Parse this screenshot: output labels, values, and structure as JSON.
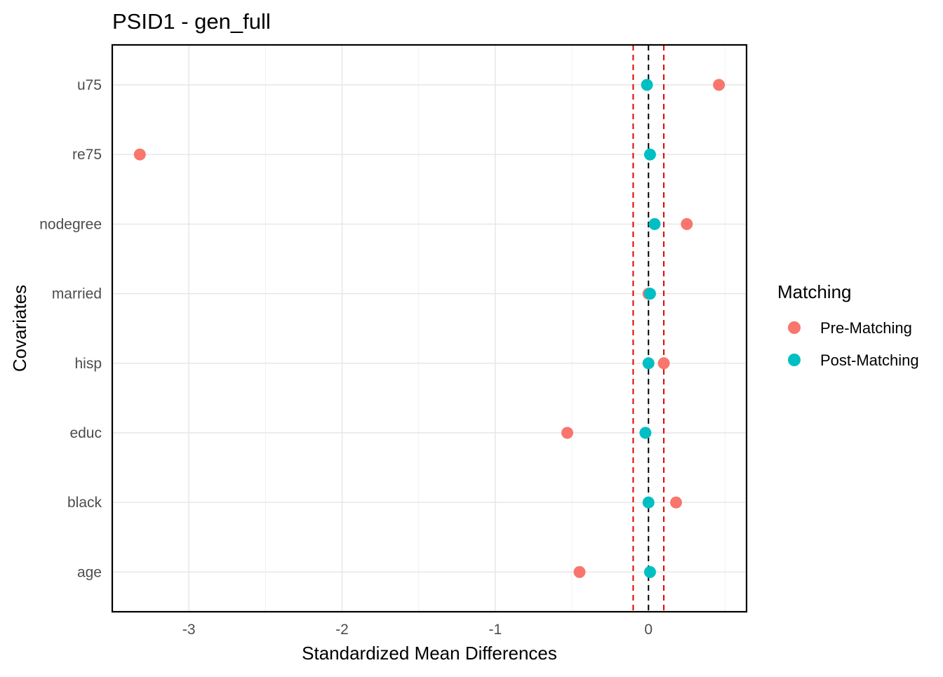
{
  "chart_data": {
    "type": "scatter",
    "title": "PSID1 - gen_full",
    "xlabel": "Standardized Mean Differences",
    "ylabel": "Covariates",
    "xlim": [
      -3.5,
      0.64
    ],
    "x_ticks": [
      -3,
      -2,
      -1,
      0
    ],
    "x_tick_labels": [
      "-3",
      "-2",
      "-1",
      "0"
    ],
    "categories": [
      "u75",
      "re75",
      "nodegree",
      "married",
      "hisp",
      "educ",
      "black",
      "age"
    ],
    "grid": true,
    "reference_lines": [
      {
        "x": 0,
        "color": "#000000",
        "style": "dashed"
      },
      {
        "x": -0.1,
        "color": "#e00000",
        "style": "dashed"
      },
      {
        "x": 0.1,
        "color": "#e00000",
        "style": "dashed"
      }
    ],
    "legend": {
      "title": "Matching",
      "position": "right"
    },
    "series": [
      {
        "name": "Pre-Matching",
        "color": "#F8766D",
        "values": [
          0.46,
          -3.32,
          0.25,
          0.0,
          0.1,
          -0.53,
          0.18,
          -0.45
        ]
      },
      {
        "name": "Post-Matching",
        "color": "#00BFC4",
        "values": [
          -0.01,
          0.01,
          0.04,
          0.01,
          0.0,
          -0.02,
          0.0,
          0.01
        ]
      }
    ]
  }
}
